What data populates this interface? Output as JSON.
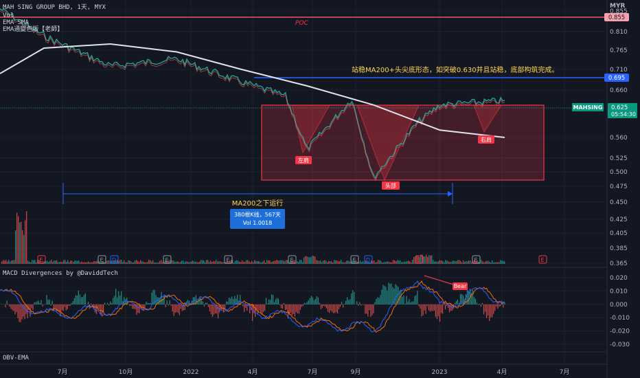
{
  "header": {
    "symbol_line": "MAH SING GROUP BHD, 1天, MYX",
    "vol": "Vol",
    "ema_sma": "EMA SMA",
    "ema_color": "EMA通變色版【老師】",
    "macd_title": "MACD Divergences by @DaviddTech",
    "obv_title": "OBV-EMA"
  },
  "price_axis": {
    "currency": "MYR",
    "ticks": [
      "0.855",
      "0.810",
      "0.765",
      "0.710",
      "0.660",
      "0.600",
      "0.560",
      "0.525",
      "0.500",
      "0.475",
      "0.450",
      "0.425",
      "0.405",
      "0.385",
      "0.365"
    ]
  },
  "macd_axis": {
    "ticks": [
      "0.020",
      "0.010",
      "0.000",
      "-0.010",
      "-0.020",
      "-0.030"
    ]
  },
  "time_axis": {
    "labels": [
      "7月",
      "10月",
      "2022",
      "4月",
      "7月",
      "9月",
      "2023",
      "4月",
      "7月"
    ]
  },
  "tags": {
    "poc": "POC",
    "poc_price": "0.855",
    "level_price": "0.695",
    "ticker": "MAHSING",
    "last_price": "0.625",
    "countdown": "05:54:30",
    "bear": "Bear"
  },
  "annotations": {
    "note": "站稳MA200+头尖底形态，如突破0.630并且站稳，底部构筑完成。",
    "left_shoulder": "左肩",
    "head": "头部",
    "right_shoulder": "右肩",
    "below_ma": "MA200之下运行",
    "bars_info": "380根K线，567天",
    "vol_info": "Vol 1.0018"
  },
  "event_markers": [
    "E",
    "E",
    "D",
    "E",
    "E",
    "E",
    "E",
    "D",
    "E",
    "E",
    "E"
  ],
  "colors": {
    "bg": "#131722",
    "up": "#26a69a",
    "down": "#ef5350",
    "ma200": "#e0e3eb",
    "blue": "#2962ff",
    "pattern": "#f23645",
    "note": "#ffd54f",
    "macd": "#2962ff",
    "signal": "#ff6d00"
  },
  "chart_data": [
    {
      "type": "line",
      "title": "MAH SING GROUP BHD, 1天, MYX",
      "series": [
        {
          "name": "MAHSING",
          "x": [
            "2021-05",
            "2021-07",
            "2021-10",
            "2022-01",
            "2022-04",
            "2022-06",
            "2022-07",
            "2022-09",
            "2022-10",
            "2022-12",
            "2023-01",
            "2023-03",
            "2023-04"
          ],
          "values": [
            0.86,
            0.8,
            0.72,
            0.74,
            0.68,
            0.64,
            0.54,
            0.63,
            0.49,
            0.58,
            0.61,
            0.62,
            0.625
          ]
        },
        {
          "name": "MA200",
          "x": [
            "2021-05",
            "2021-07",
            "2021-10",
            "2022-01",
            "2022-04",
            "2022-07",
            "2022-10",
            "2023-01",
            "2023-04"
          ],
          "values": [
            0.7,
            0.77,
            0.78,
            0.76,
            0.71,
            0.67,
            0.61,
            0.57,
            0.56
          ]
        }
      ],
      "ylim": [
        0.365,
        0.875
      ],
      "levels": {
        "poc": 0.855,
        "resistance": 0.695,
        "last": 0.625
      }
    },
    {
      "type": "line",
      "title": "MACD Divergences by @DaviddTech",
      "series": [
        {
          "name": "MACD",
          "x": [
            "2021-05",
            "2021-07",
            "2021-10",
            "2022-01",
            "2022-04",
            "2022-07",
            "2022-10",
            "2022-12",
            "2023-01",
            "2023-03",
            "2023-04"
          ],
          "values": [
            0.01,
            -0.008,
            -0.004,
            0.004,
            -0.002,
            -0.014,
            -0.018,
            0.021,
            -0.002,
            0.01,
            0.002
          ]
        }
      ],
      "ylim": [
        -0.033,
        0.024
      ]
    }
  ]
}
